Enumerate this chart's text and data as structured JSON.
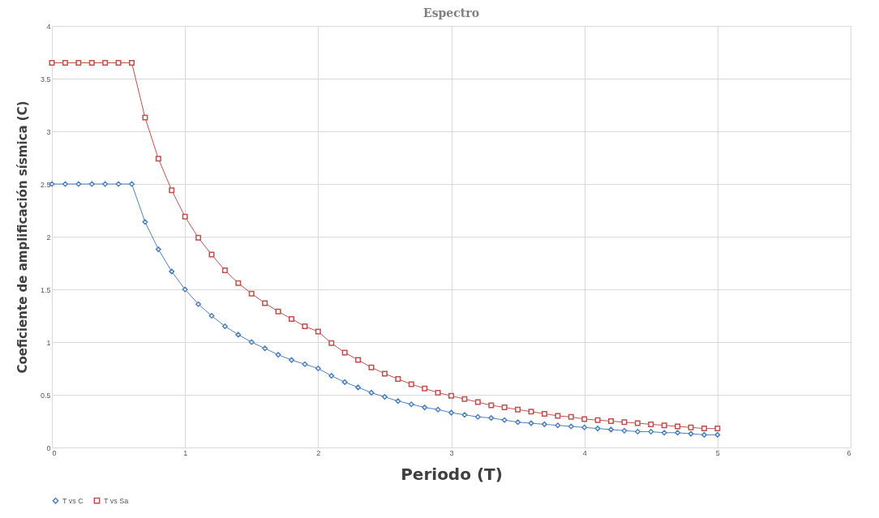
{
  "chart_data": {
    "type": "line",
    "title": "Espectro",
    "xlabel": "Periodo (T)",
    "ylabel": "Coeficiente de amplificación sísmica (C)",
    "x": [
      0,
      0.1,
      0.2,
      0.3,
      0.4,
      0.5,
      0.6,
      0.7,
      0.8,
      0.9,
      1,
      1.1,
      1.2,
      1.3,
      1.4,
      1.5,
      1.6,
      1.7,
      1.8,
      1.9,
      2,
      2.1,
      2.2,
      2.3,
      2.4,
      2.5,
      2.6,
      2.7,
      2.8,
      2.9,
      3,
      3.1,
      3.2,
      3.3,
      3.4,
      3.5,
      3.6,
      3.7,
      3.8,
      3.9,
      4,
      4.1,
      4.2,
      4.3,
      4.4,
      4.5,
      4.6,
      4.7,
      4.8,
      4.9,
      5
    ],
    "series": [
      {
        "name": "T vs C",
        "color": "#4f81bd",
        "marker": "diamond",
        "values": [
          2.5,
          2.5,
          2.5,
          2.5,
          2.5,
          2.5,
          2.5,
          2.14,
          1.88,
          1.67,
          1.5,
          1.36,
          1.25,
          1.15,
          1.07,
          1.0,
          0.94,
          0.88,
          0.83,
          0.79,
          0.75,
          0.68,
          0.62,
          0.57,
          0.52,
          0.48,
          0.44,
          0.41,
          0.38,
          0.36,
          0.33,
          0.31,
          0.29,
          0.28,
          0.26,
          0.24,
          0.23,
          0.22,
          0.21,
          0.2,
          0.19,
          0.18,
          0.17,
          0.16,
          0.15,
          0.15,
          0.14,
          0.14,
          0.13,
          0.12,
          0.12
        ]
      },
      {
        "name": "T vs Sa",
        "color": "#c0504d",
        "marker": "square",
        "values": [
          3.65,
          3.65,
          3.65,
          3.65,
          3.65,
          3.65,
          3.65,
          3.13,
          2.74,
          2.44,
          2.19,
          1.99,
          1.83,
          1.68,
          1.56,
          1.46,
          1.37,
          1.29,
          1.22,
          1.15,
          1.1,
          0.99,
          0.9,
          0.83,
          0.76,
          0.7,
          0.65,
          0.6,
          0.56,
          0.52,
          0.49,
          0.46,
          0.43,
          0.4,
          0.38,
          0.36,
          0.34,
          0.32,
          0.3,
          0.29,
          0.27,
          0.26,
          0.25,
          0.24,
          0.23,
          0.22,
          0.21,
          0.2,
          0.19,
          0.18,
          0.18
        ]
      }
    ],
    "xlim": [
      0,
      6
    ],
    "xticks": [
      0,
      1,
      2,
      3,
      4,
      5,
      6
    ],
    "ylim": [
      0,
      4
    ],
    "yticks": [
      0,
      0.5,
      1,
      1.5,
      2,
      2.5,
      3,
      3.5,
      4
    ],
    "grid": true,
    "legend": "bottom",
    "line_style": "solid"
  }
}
